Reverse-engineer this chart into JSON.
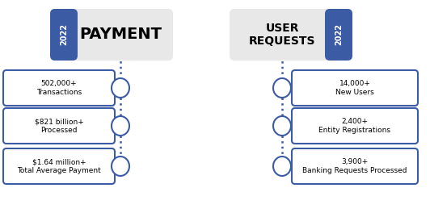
{
  "payment_label": "PAYMENT",
  "user_requests_label": "USER\nREQUESTS",
  "year": "2022",
  "left_boxes": [
    "502,000+\nTransactions",
    "$821 billion+\nProcessed",
    "$1.64 million+\nTotal Average Payment"
  ],
  "right_boxes": [
    "14,000+\nNew Users",
    "2,400+\nEntity Registrations",
    "3,900+\nBanking Requests Processed"
  ],
  "blue_color": "#3B5BA5",
  "header_bg": "#E8E8E8",
  "background": "#FFFFFF",
  "text_color": "#000000",
  "year_text_color": "#FFFFFF"
}
